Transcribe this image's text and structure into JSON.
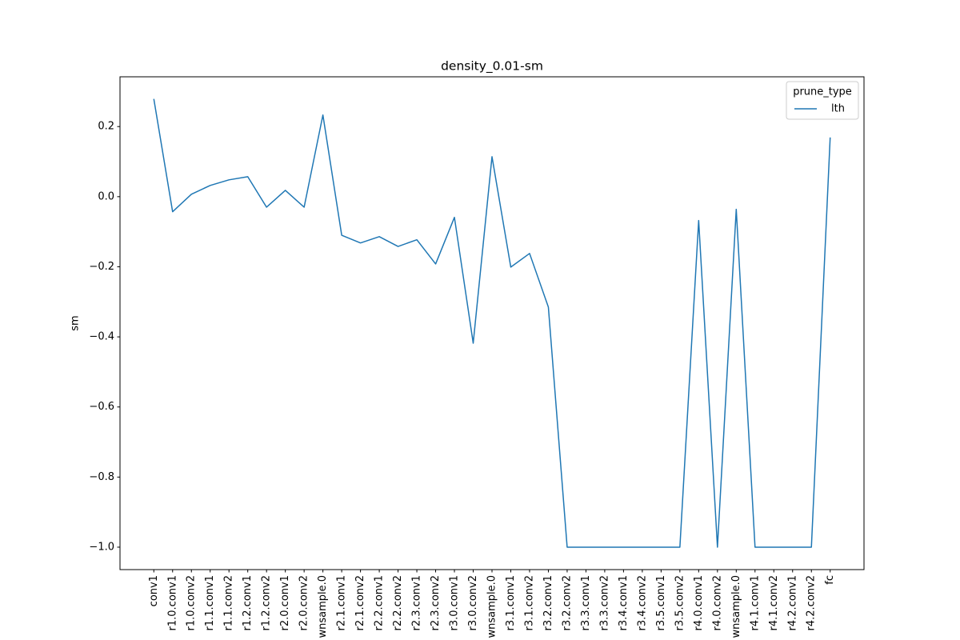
{
  "chart_data": {
    "type": "line",
    "title": "density_0.01-sm",
    "y_label": "sm",
    "categories": [
      "conv1",
      "r1.0.conv1",
      "r1.0.conv2",
      "r1.1.conv1",
      "r1.1.conv2",
      "r1.2.conv1",
      "r1.2.conv2",
      "r2.0.conv1",
      "r2.0.conv2",
      "wnsample.0",
      "r2.1.conv1",
      "r2.1.conv2",
      "r2.2.conv1",
      "r2.2.conv2",
      "r2.3.conv1",
      "r2.3.conv2",
      "r3.0.conv1",
      "r3.0.conv2",
      "wnsample.0",
      "r3.1.conv1",
      "r3.1.conv2",
      "r3.2.conv1",
      "r3.2.conv2",
      "r3.3.conv1",
      "r3.3.conv2",
      "r3.4.conv1",
      "r3.4.conv2",
      "r3.5.conv1",
      "r3.5.conv2",
      "r4.0.conv1",
      "r4.0.conv2",
      "wnsample.0",
      "r4.1.conv1",
      "r4.1.conv2",
      "r4.2.conv1",
      "r4.2.conv2",
      "fc"
    ],
    "series": [
      {
        "name": "lth",
        "color": "#1f77b4",
        "values": [
          0.279,
          -0.043,
          0.007,
          0.032,
          0.048,
          0.057,
          -0.03,
          0.018,
          -0.03,
          0.233,
          -0.11,
          -0.132,
          -0.114,
          -0.142,
          -0.123,
          -0.192,
          -0.059,
          -0.418,
          0.114,
          -0.201,
          -0.162,
          -0.315,
          -1.0,
          -1.0,
          -1.0,
          -1.0,
          -1.0,
          -1.0,
          -1.0,
          -0.068,
          -1.0,
          -0.036,
          -1.0,
          -1.0,
          -1.0,
          -1.0,
          0.169
        ]
      }
    ],
    "legend_title": "prune_type",
    "legend_position": "upper right",
    "ylim": [
      -1.064,
      0.342
    ],
    "yticks": [
      {
        "value": -1.0,
        "label": "−1.0"
      },
      {
        "value": -0.8,
        "label": "−0.8"
      },
      {
        "value": -0.6,
        "label": "−0.6"
      },
      {
        "value": -0.4,
        "label": "−0.4"
      },
      {
        "value": -0.2,
        "label": "−0.2"
      },
      {
        "value": 0.0,
        "label": "0.0"
      },
      0.2
    ],
    "grid": false
  }
}
